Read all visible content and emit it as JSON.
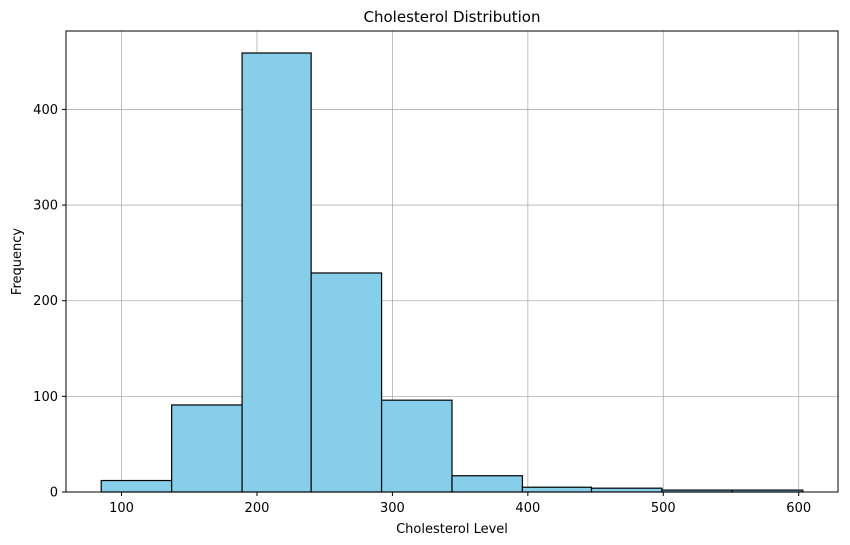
{
  "chart_data": {
    "type": "bar",
    "title": "Cholesterol Distribution",
    "xlabel": "Cholesterol Level",
    "ylabel": "Frequency",
    "bin_edges": [
      85,
      137,
      189,
      240,
      292,
      344,
      396,
      447,
      499,
      551,
      603
    ],
    "values": [
      12,
      91,
      459,
      229,
      96,
      17,
      5,
      4,
      2,
      2
    ],
    "xlim": [
      59,
      629
    ],
    "ylim": [
      0,
      482
    ],
    "xticks": [
      100,
      200,
      300,
      400,
      500,
      600
    ],
    "yticks": [
      0,
      100,
      200,
      300,
      400
    ],
    "grid": true,
    "bar_color": "#87CEEB",
    "edge_color": "#000000"
  }
}
